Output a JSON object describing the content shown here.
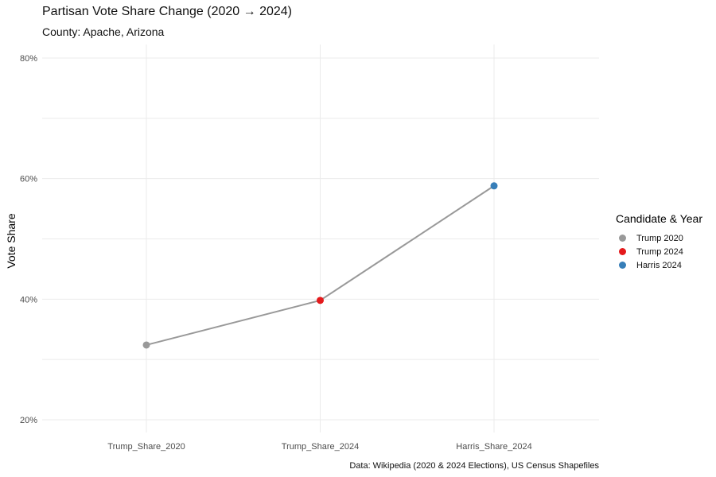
{
  "title": "Partisan Vote Share Change (2020 → 2024)",
  "subtitle": "County: Apache, Arizona",
  "caption": "Data: Wikipedia (2020 & 2024 Elections), US Census Shapefiles",
  "legend": {
    "title": "Candidate & Year",
    "items": [
      {
        "label": "Trump 2020",
        "color": "#999999"
      },
      {
        "label": "Trump 2024",
        "color": "#e41a1c"
      },
      {
        "label": "Harris 2024",
        "color": "#377eb8"
      }
    ]
  },
  "chart_data": {
    "type": "line",
    "categories": [
      "Trump_Share_2020",
      "Trump_Share_2024",
      "Harris_Share_2024"
    ],
    "points": [
      {
        "category": "Trump_Share_2020",
        "value": 0.324,
        "group": "Trump 2020",
        "color": "#999999"
      },
      {
        "category": "Trump_Share_2024",
        "value": 0.398,
        "group": "Trump 2024",
        "color": "#e41a1c"
      },
      {
        "category": "Harris_Share_2024",
        "value": 0.588,
        "group": "Harris 2024",
        "color": "#377eb8"
      }
    ],
    "line_color": "#999999",
    "xlabel": "",
    "ylabel": "Vote Share",
    "ylim": [
      0.2,
      0.8
    ],
    "yticks": [
      0.2,
      0.4,
      0.6,
      0.8
    ],
    "ytick_labels": [
      "20%",
      "40%",
      "60%",
      "80%"
    ],
    "grid": true,
    "legend_position": "right"
  }
}
